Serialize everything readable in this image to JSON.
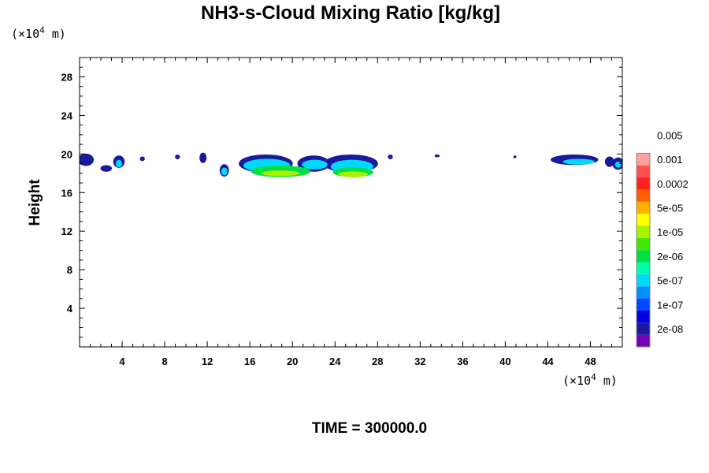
{
  "chart_data": {
    "type": "contour",
    "title": "NH3-s-Cloud Mixing Ratio [kg/kg]",
    "ylabel": "Height",
    "xlabel": "",
    "x_unit_prefix": "(×10",
    "x_unit_exp": "4",
    "x_unit_suffix": " m)",
    "y_unit_prefix": "(×10",
    "y_unit_exp": "4",
    "y_unit_suffix": " m)",
    "xlim": [
      0,
      51
    ],
    "ylim": [
      0,
      30
    ],
    "x_ticks": [
      4,
      8,
      12,
      16,
      20,
      24,
      28,
      32,
      36,
      40,
      44,
      48
    ],
    "y_ticks": [
      4,
      8,
      12,
      16,
      20,
      24,
      28
    ],
    "grid": false,
    "colorbar": {
      "levels": [
        "2e-08",
        "1e-07",
        "5e-07",
        "2e-06",
        "1e-05",
        "5e-05",
        "0.0002",
        "0.001",
        "0.005"
      ],
      "colors": [
        "#7a00b8",
        "#1a1a9e",
        "#0000e0",
        "#0048ff",
        "#0090ff",
        "#00d8ff",
        "#00ffa8",
        "#00e040",
        "#40e800",
        "#a8f000",
        "#ffff00",
        "#ffb000",
        "#ff6000",
        "#ff2020",
        "#ff5050",
        "#ffa0a0"
      ],
      "label_slots": [
        1,
        3,
        5,
        7,
        9,
        11,
        13,
        15,
        17
      ]
    },
    "cloud_regions": [
      {
        "level": "2e-08",
        "blobs": [
          [
            0.6,
            19.4,
            0.7,
            0.6
          ],
          [
            2.5,
            18.5,
            0.5,
            0.3
          ],
          [
            3.7,
            19.2,
            0.5,
            0.6
          ],
          [
            5.9,
            19.5,
            0.2,
            0.2
          ],
          [
            9.2,
            19.7,
            0.2,
            0.2
          ],
          [
            11.6,
            19.6,
            0.3,
            0.5
          ],
          [
            13.6,
            18.3,
            0.4,
            0.6
          ],
          [
            17.5,
            19.0,
            2.5,
            0.9
          ],
          [
            22.0,
            19.0,
            1.5,
            0.8
          ],
          [
            25.5,
            19.0,
            2.5,
            0.9
          ],
          [
            29.2,
            19.7,
            0.2,
            0.2
          ],
          [
            33.6,
            19.8,
            0.2,
            0.1
          ],
          [
            40.9,
            19.7,
            0.1,
            0.1
          ],
          [
            46.5,
            19.4,
            2.2,
            0.5
          ],
          [
            49.8,
            19.2,
            0.4,
            0.5
          ],
          [
            50.6,
            19.0,
            0.5,
            0.6
          ]
        ]
      },
      {
        "level": "5e-07",
        "blobs": [
          [
            3.7,
            19.0,
            0.3,
            0.4
          ],
          [
            13.6,
            18.2,
            0.3,
            0.4
          ],
          [
            17.6,
            18.8,
            2.2,
            0.7
          ],
          [
            22.1,
            18.9,
            1.2,
            0.5
          ],
          [
            25.6,
            18.7,
            2.0,
            0.7
          ],
          [
            46.9,
            19.2,
            1.5,
            0.3
          ],
          [
            50.6,
            18.9,
            0.3,
            0.3
          ]
        ]
      },
      {
        "level": "2e-06",
        "blobs": [
          [
            18.9,
            18.2,
            2.8,
            0.6
          ],
          [
            25.7,
            18.1,
            1.9,
            0.5
          ]
        ]
      },
      {
        "level": "1e-05",
        "blobs": [
          [
            18.9,
            18.0,
            1.8,
            0.3
          ],
          [
            25.7,
            17.9,
            1.4,
            0.3
          ]
        ]
      }
    ]
  },
  "footer": {
    "time_label": "TIME = 300000.0"
  }
}
